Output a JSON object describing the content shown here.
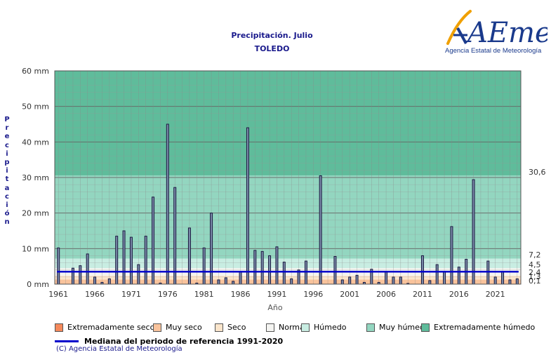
{
  "title": "Precipitación. Julio",
  "subtitle": "TOLEDO",
  "logo": {
    "brand": "AEmet",
    "text": "Agencia Estatal de Meteorología"
  },
  "chart_data": {
    "type": "bar",
    "ylabel": "Precipitación",
    "xlabel": "Año",
    "ylim": [
      0,
      60
    ],
    "xlim": [
      1960.5,
      2024.5
    ],
    "y_ticks": [
      "0 mm",
      "10 mm",
      "20 mm",
      "30 mm",
      "40 mm",
      "50 mm",
      "60 mm"
    ],
    "x_ticks": [
      "1961",
      "1966",
      "1971",
      "1976",
      "1981",
      "1986",
      "1991",
      "1996",
      "2001",
      "2006",
      "2011",
      "2016",
      "2021"
    ],
    "grid": true,
    "years": [
      1961,
      1962,
      1963,
      1964,
      1965,
      1966,
      1967,
      1968,
      1969,
      1970,
      1971,
      1972,
      1973,
      1974,
      1975,
      1976,
      1977,
      1978,
      1979,
      1980,
      1981,
      1982,
      1983,
      1984,
      1985,
      1986,
      1987,
      1988,
      1989,
      1990,
      1991,
      1992,
      1993,
      1994,
      1995,
      1996,
      1997,
      1998,
      1999,
      2000,
      2001,
      2002,
      2003,
      2004,
      2005,
      2006,
      2007,
      2008,
      2009,
      2010,
      2011,
      2012,
      2013,
      2014,
      2015,
      2016,
      2017,
      2018,
      2019,
      2020,
      2021,
      2022,
      2023,
      2024
    ],
    "values": [
      10.2,
      0,
      4.5,
      5.2,
      8.5,
      2.0,
      0.5,
      1.5,
      13.5,
      15.0,
      13.2,
      5.5,
      13.5,
      24.5,
      0.3,
      45.0,
      27.2,
      0,
      15.8,
      0.3,
      10.2,
      20.0,
      1.2,
      1.8,
      0.8,
      3.5,
      44.0,
      9.5,
      9.2,
      8.0,
      10.5,
      6.2,
      1.5,
      4.0,
      6.5,
      0,
      30.5,
      0,
      7.8,
      1.2,
      2.0,
      2.5,
      0.5,
      4.2,
      0.5,
      3.5,
      2.0,
      2.0,
      0.2,
      0,
      8.0,
      1.0,
      5.5,
      3.5,
      16.2,
      4.8,
      7.0,
      29.4,
      0,
      6.5,
      2.0,
      3.5,
      1.2,
      1.5
    ],
    "median": 3.5,
    "median_legend": "Mediana del periodo de referencia 1991-2020",
    "bands": [
      {
        "name": "Extremadamente seco",
        "from": 0,
        "to": 0.1,
        "color": "#f5895b"
      },
      {
        "name": "Muy seco",
        "from": 0.1,
        "to": 1.3,
        "color": "#f9c39c"
      },
      {
        "name": "Seco",
        "from": 1.3,
        "to": 2.4,
        "color": "#fbe5cb"
      },
      {
        "name": "Normal",
        "from": 2.4,
        "to": 4.5,
        "color": "#f4f4f1"
      },
      {
        "name": "Húmedo",
        "from": 4.5,
        "to": 7.2,
        "color": "#c8ede2"
      },
      {
        "name": "Muy húmedo",
        "from": 7.2,
        "to": 30.6,
        "color": "#93d6c0"
      },
      {
        "name": "Extremadamente húmedo",
        "from": 30.6,
        "to": 60,
        "color": "#5fbc9b"
      }
    ],
    "threshold_labels": [
      "30,6",
      "7,2",
      "4,5",
      "2,4",
      "1,3",
      "0,1"
    ]
  },
  "copyright": "(C) Agencia Estatal de Meteorología"
}
